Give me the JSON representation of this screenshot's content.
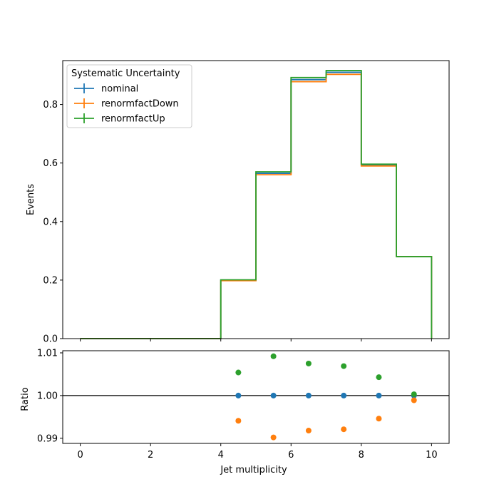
{
  "chart_data": [
    {
      "type": "line",
      "subtype": "step-histogram",
      "title": "",
      "xlabel": "",
      "ylabel": "Events",
      "xlim": [
        -0.5,
        10.5
      ],
      "ylim": [
        0,
        0.95
      ],
      "xticks": [
        0,
        2,
        4,
        6,
        8,
        10
      ],
      "yticks": [
        0.0,
        0.2,
        0.4,
        0.6,
        0.8
      ],
      "ytick_labels": [
        "0.0",
        "0.2",
        "0.4",
        "0.6",
        "0.8"
      ],
      "bin_edges": [
        0,
        1,
        2,
        3,
        4,
        5,
        6,
        7,
        8,
        9,
        10
      ],
      "legend": {
        "title": "Systematic Uncertainty",
        "placement": "top-left"
      },
      "series": [
        {
          "name": "nominal",
          "color": "#1f77b4",
          "values": [
            0,
            0,
            0,
            0,
            0.2,
            0.565,
            0.885,
            0.91,
            0.593,
            0.28
          ]
        },
        {
          "name": "renormfactDown",
          "color": "#ff7f0e",
          "values": [
            0,
            0,
            0,
            0,
            0.198,
            0.56,
            0.878,
            0.903,
            0.59,
            0.28
          ]
        },
        {
          "name": "renormfactUp",
          "color": "#2ca02c",
          "values": [
            0,
            0,
            0,
            0,
            0.201,
            0.57,
            0.892,
            0.916,
            0.596,
            0.28
          ]
        }
      ]
    },
    {
      "type": "scatter",
      "title": "",
      "xlabel": "Jet multiplicity",
      "ylabel": "Ratio",
      "xlim": [
        -0.5,
        10.5
      ],
      "ylim": [
        0.9888,
        1.0105
      ],
      "xticks": [
        0,
        2,
        4,
        6,
        8,
        10
      ],
      "yticks": [
        0.99,
        1.0,
        1.01
      ],
      "ytick_labels": [
        "0.99",
        "1.00",
        "1.01"
      ],
      "reference_line": 1.0,
      "x": [
        4.5,
        5.5,
        6.5,
        7.5,
        8.5,
        9.5
      ],
      "series": [
        {
          "name": "nominal",
          "color": "#1f77b4",
          "values": [
            1.0,
            1.0,
            1.0,
            1.0,
            1.0,
            1.0
          ]
        },
        {
          "name": "renormfactDown",
          "color": "#ff7f0e",
          "values": [
            0.9941,
            0.9902,
            0.9918,
            0.9921,
            0.9946,
            0.9989
          ]
        },
        {
          "name": "renormfactUp",
          "color": "#2ca02c",
          "values": [
            1.0054,
            1.0092,
            1.0075,
            1.0069,
            1.0043,
            1.0003
          ]
        }
      ]
    }
  ]
}
